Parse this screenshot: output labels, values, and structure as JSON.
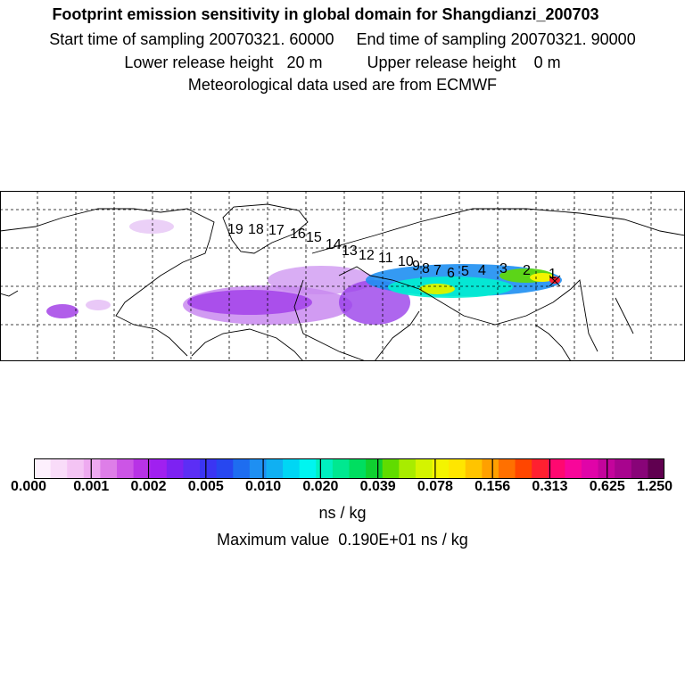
{
  "header": {
    "title": "Footprint emission sensitivity in global domain for Shangdianzi_200703",
    "line2": "Start time of sampling 20070321. 60000     End time of sampling 20070321. 90000",
    "line3": "Lower release height   20 m          Upper release height    0 m",
    "line4": "Meteorological data used are from ECMWF"
  },
  "map": {
    "trajectory_labels": [
      "1",
      "2",
      "3",
      "4",
      "5",
      "6",
      "7",
      "8",
      "9",
      "10",
      "11",
      "12",
      "13",
      "14",
      "15",
      "16",
      "17",
      "18",
      "19"
    ]
  },
  "colorbar": {
    "colors": [
      "#fdf0fd",
      "#f9dcf9",
      "#f4c4f4",
      "#eeaaf0",
      "#de7ee8",
      "#cc55e6",
      "#b833e6",
      "#a020f0",
      "#7d22f2",
      "#5c2ef5",
      "#3b35f3",
      "#2747f0",
      "#1e6df0",
      "#1e8ff2",
      "#10b0f2",
      "#00d6f4",
      "#00f5f0",
      "#00f0c0",
      "#00e890",
      "#00de60",
      "#10d030",
      "#60dc00",
      "#a8ec00",
      "#d4f400",
      "#f4f400",
      "#ffe600",
      "#ffc400",
      "#ffa000",
      "#ff7000",
      "#ff4600",
      "#ff2030",
      "#ff0870",
      "#f8069a",
      "#e004a8",
      "#c4049c",
      "#a8048e",
      "#880478",
      "#600050"
    ],
    "tick_labels": [
      "0.000",
      "0.001",
      "0.002",
      "0.005",
      "0.010",
      "0.020",
      "0.039",
      "0.078",
      "0.156",
      "0.313",
      "0.625",
      "1.250"
    ],
    "unit": "ns / kg"
  },
  "max_value_text": "Maximum value  0.190E+01 ns / kg"
}
